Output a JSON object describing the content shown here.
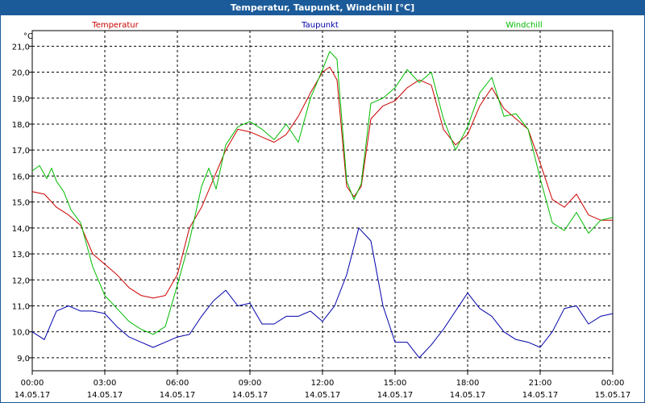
{
  "window": {
    "title": "Temperatur, Taupunkt, Windchill [°C]"
  },
  "chart_data": {
    "type": "line",
    "title": "Temperatur, Taupunkt, Windchill [°C]",
    "ylabel": "°C",
    "xlabel": "",
    "ylim": [
      8.5,
      21.6
    ],
    "xlim_hours": [
      0,
      24
    ],
    "grid": true,
    "legend_placement": "top",
    "y_ticks": [
      9.0,
      10.0,
      11.0,
      12.0,
      13.0,
      14.0,
      15.0,
      16.0,
      17.0,
      18.0,
      19.0,
      20.0,
      21.0
    ],
    "y_tick_labels": [
      "9,0",
      "10,0",
      "11,0",
      "12,0",
      "13,0",
      "14,0",
      "15,0",
      "16,0",
      "17,0",
      "18,0",
      "19,0",
      "20,0",
      "21,0"
    ],
    "x_ticks": [
      {
        "time": "00:00",
        "date": "14.05.17"
      },
      {
        "time": "03:00",
        "date": "14.05.17"
      },
      {
        "time": "06:00",
        "date": "14.05.17"
      },
      {
        "time": "09:00",
        "date": "14.05.17"
      },
      {
        "time": "12:00",
        "date": "14.05.17"
      },
      {
        "time": "15:00",
        "date": "14.05.17"
      },
      {
        "time": "18:00",
        "date": "14.05.17"
      },
      {
        "time": "21:00",
        "date": "14.05.17"
      },
      {
        "time": "00:00",
        "date": "15.05.17"
      }
    ],
    "series": [
      {
        "name": "Temperatur",
        "color": "#cc0000",
        "x": [
          0.0,
          0.5,
          1.0,
          1.5,
          2.0,
          2.5,
          3.0,
          3.5,
          4.0,
          4.5,
          5.0,
          5.5,
          6.0,
          6.5,
          7.0,
          7.5,
          8.0,
          8.5,
          9.0,
          9.5,
          10.0,
          10.5,
          11.0,
          11.5,
          12.0,
          12.3,
          12.6,
          13.0,
          13.3,
          13.6,
          14.0,
          14.5,
          15.0,
          15.5,
          16.0,
          16.5,
          17.0,
          17.5,
          18.0,
          18.5,
          19.0,
          19.5,
          20.0,
          20.5,
          21.0,
          21.5,
          22.0,
          22.5,
          23.0,
          23.5,
          24.0
        ],
        "values": [
          15.4,
          15.3,
          14.8,
          14.5,
          14.1,
          13.0,
          12.6,
          12.2,
          11.7,
          11.4,
          11.3,
          11.4,
          12.2,
          14.0,
          14.8,
          15.9,
          17.0,
          17.8,
          17.7,
          17.5,
          17.3,
          17.6,
          18.3,
          19.2,
          20.0,
          20.2,
          19.7,
          15.6,
          15.2,
          15.6,
          18.2,
          18.7,
          18.9,
          19.4,
          19.7,
          19.5,
          17.8,
          17.2,
          17.6,
          18.7,
          19.4,
          18.6,
          18.2,
          17.8,
          16.5,
          15.1,
          14.8,
          15.3,
          14.5,
          14.3,
          14.3
        ]
      },
      {
        "name": "Taupunkt",
        "color": "#0000aa",
        "x": [
          0.0,
          0.5,
          1.0,
          1.5,
          2.0,
          2.5,
          3.0,
          3.5,
          4.0,
          4.5,
          5.0,
          5.5,
          6.0,
          6.5,
          7.0,
          7.5,
          8.0,
          8.5,
          9.0,
          9.5,
          10.0,
          10.5,
          11.0,
          11.5,
          12.0,
          12.5,
          13.0,
          13.5,
          14.0,
          14.5,
          15.0,
          15.5,
          16.0,
          16.5,
          17.0,
          17.5,
          18.0,
          18.5,
          19.0,
          19.5,
          20.0,
          20.5,
          21.0,
          21.5,
          22.0,
          22.5,
          23.0,
          23.5,
          24.0
        ],
        "values": [
          10.0,
          9.7,
          10.8,
          11.0,
          10.8,
          10.8,
          10.7,
          10.2,
          9.8,
          9.6,
          9.4,
          9.6,
          9.8,
          9.9,
          10.6,
          11.2,
          11.6,
          11.0,
          11.1,
          10.3,
          10.3,
          10.6,
          10.6,
          10.8,
          10.4,
          11.0,
          12.2,
          14.0,
          13.5,
          11.0,
          9.6,
          9.6,
          9.0,
          9.5,
          10.1,
          10.8,
          11.5,
          10.9,
          10.6,
          10.0,
          9.7,
          9.6,
          9.4,
          10.0,
          10.9,
          11.0,
          10.3,
          10.6,
          10.7
        ]
      },
      {
        "name": "Windchill",
        "color": "#00bb00",
        "x": [
          0.0,
          0.3,
          0.6,
          0.8,
          1.0,
          1.3,
          1.6,
          2.0,
          2.5,
          3.0,
          3.5,
          4.0,
          4.5,
          5.0,
          5.5,
          6.0,
          6.5,
          7.0,
          7.3,
          7.6,
          8.0,
          8.5,
          9.0,
          9.5,
          10.0,
          10.5,
          11.0,
          11.5,
          12.0,
          12.3,
          12.6,
          13.0,
          13.3,
          13.6,
          14.0,
          14.5,
          15.0,
          15.5,
          16.0,
          16.5,
          17.0,
          17.5,
          18.0,
          18.5,
          19.0,
          19.5,
          20.0,
          20.5,
          21.0,
          21.5,
          22.0,
          22.5,
          23.0,
          23.5,
          24.0
        ],
        "values": [
          16.2,
          16.4,
          15.9,
          16.3,
          15.8,
          15.4,
          14.7,
          14.2,
          12.5,
          11.4,
          10.9,
          10.4,
          10.1,
          9.9,
          10.2,
          11.8,
          13.5,
          15.6,
          16.3,
          15.5,
          17.2,
          17.9,
          18.1,
          17.8,
          17.4,
          18.0,
          17.3,
          19.0,
          20.1,
          20.8,
          20.5,
          15.8,
          15.1,
          15.7,
          18.8,
          19.0,
          19.4,
          20.1,
          19.6,
          20.0,
          18.2,
          17.0,
          17.9,
          19.2,
          19.8,
          18.3,
          18.4,
          17.8,
          15.9,
          14.2,
          13.9,
          14.6,
          13.8,
          14.3,
          14.4
        ]
      }
    ]
  }
}
